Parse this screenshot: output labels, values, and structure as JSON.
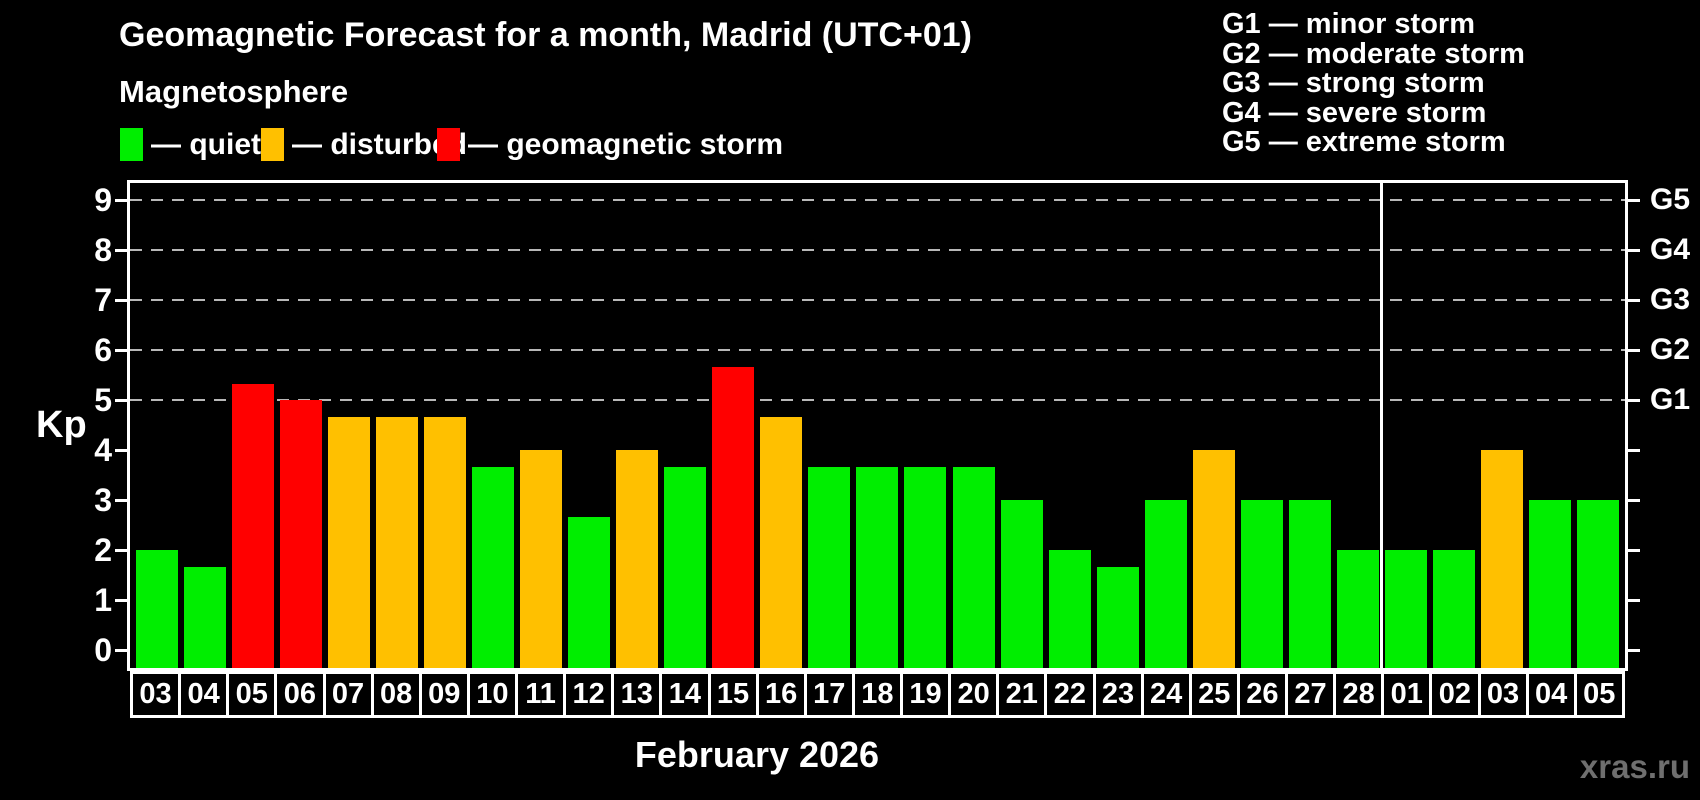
{
  "header": {
    "title": "Geomagnetic Forecast for a month, Madrid (UTC+01)",
    "subtitle": "Magnetosphere"
  },
  "legend": {
    "items": [
      {
        "label": "— quiet",
        "status": "quiet",
        "color": "#00ee00"
      },
      {
        "label": "— disturbed",
        "status": "disturbed",
        "color": "#ffc000"
      },
      {
        "label": "— geomagnetic storm",
        "status": "storm",
        "color": "#ff0000"
      }
    ]
  },
  "g_legend": {
    "items": [
      "G1 — minor storm",
      "G2 — moderate storm",
      "G3 — strong storm",
      "G4 — severe storm",
      "G5 — extreme storm"
    ]
  },
  "axes": {
    "ylabel": "Kp",
    "y_ticks": [
      0,
      1,
      2,
      3,
      4,
      5,
      6,
      7,
      8,
      9
    ],
    "right_axis_labels": [
      {
        "label": "G1",
        "kp": 5
      },
      {
        "label": "G2",
        "kp": 6
      },
      {
        "label": "G3",
        "kp": 7
      },
      {
        "label": "G4",
        "kp": 8
      },
      {
        "label": "G5",
        "kp": 9
      }
    ],
    "gridlines_kp": [
      5,
      6,
      7,
      8,
      9
    ]
  },
  "chart_data": {
    "type": "bar",
    "title": "Geomagnetic Forecast for a month, Madrid (UTC+01)",
    "xlabel": "February 2026",
    "ylabel": "Kp",
    "ylim": [
      0,
      9
    ],
    "grid": "dashed horizontal at Kp 5-9 only",
    "legend_position": "top",
    "categories": [
      "03",
      "04",
      "05",
      "06",
      "07",
      "08",
      "09",
      "10",
      "11",
      "12",
      "13",
      "14",
      "15",
      "16",
      "17",
      "18",
      "19",
      "20",
      "21",
      "22",
      "23",
      "24",
      "25",
      "26",
      "27",
      "28",
      "01",
      "02",
      "03",
      "04",
      "05"
    ],
    "values": [
      2,
      1.67,
      5.33,
      5,
      4.67,
      4.67,
      4.67,
      3.67,
      4,
      2.67,
      4,
      3.67,
      5.67,
      4.67,
      3.67,
      3.67,
      3.67,
      3.67,
      3,
      2,
      1.67,
      3,
      4,
      3,
      3,
      2,
      2,
      2,
      4,
      3,
      3
    ],
    "statuses": [
      "quiet",
      "quiet",
      "storm",
      "storm",
      "disturbed",
      "disturbed",
      "disturbed",
      "quiet",
      "disturbed",
      "quiet",
      "disturbed",
      "quiet",
      "storm",
      "disturbed",
      "quiet",
      "quiet",
      "quiet",
      "quiet",
      "quiet",
      "quiet",
      "quiet",
      "quiet",
      "disturbed",
      "quiet",
      "quiet",
      "quiet",
      "quiet",
      "quiet",
      "disturbed",
      "quiet",
      "quiet"
    ],
    "status_colors": {
      "quiet": "#00ee00",
      "disturbed": "#ffc000",
      "storm": "#ff0000"
    },
    "month_separator_after_index": 25
  },
  "footer": {
    "month_label": "February 2026",
    "watermark": "xras.ru"
  }
}
